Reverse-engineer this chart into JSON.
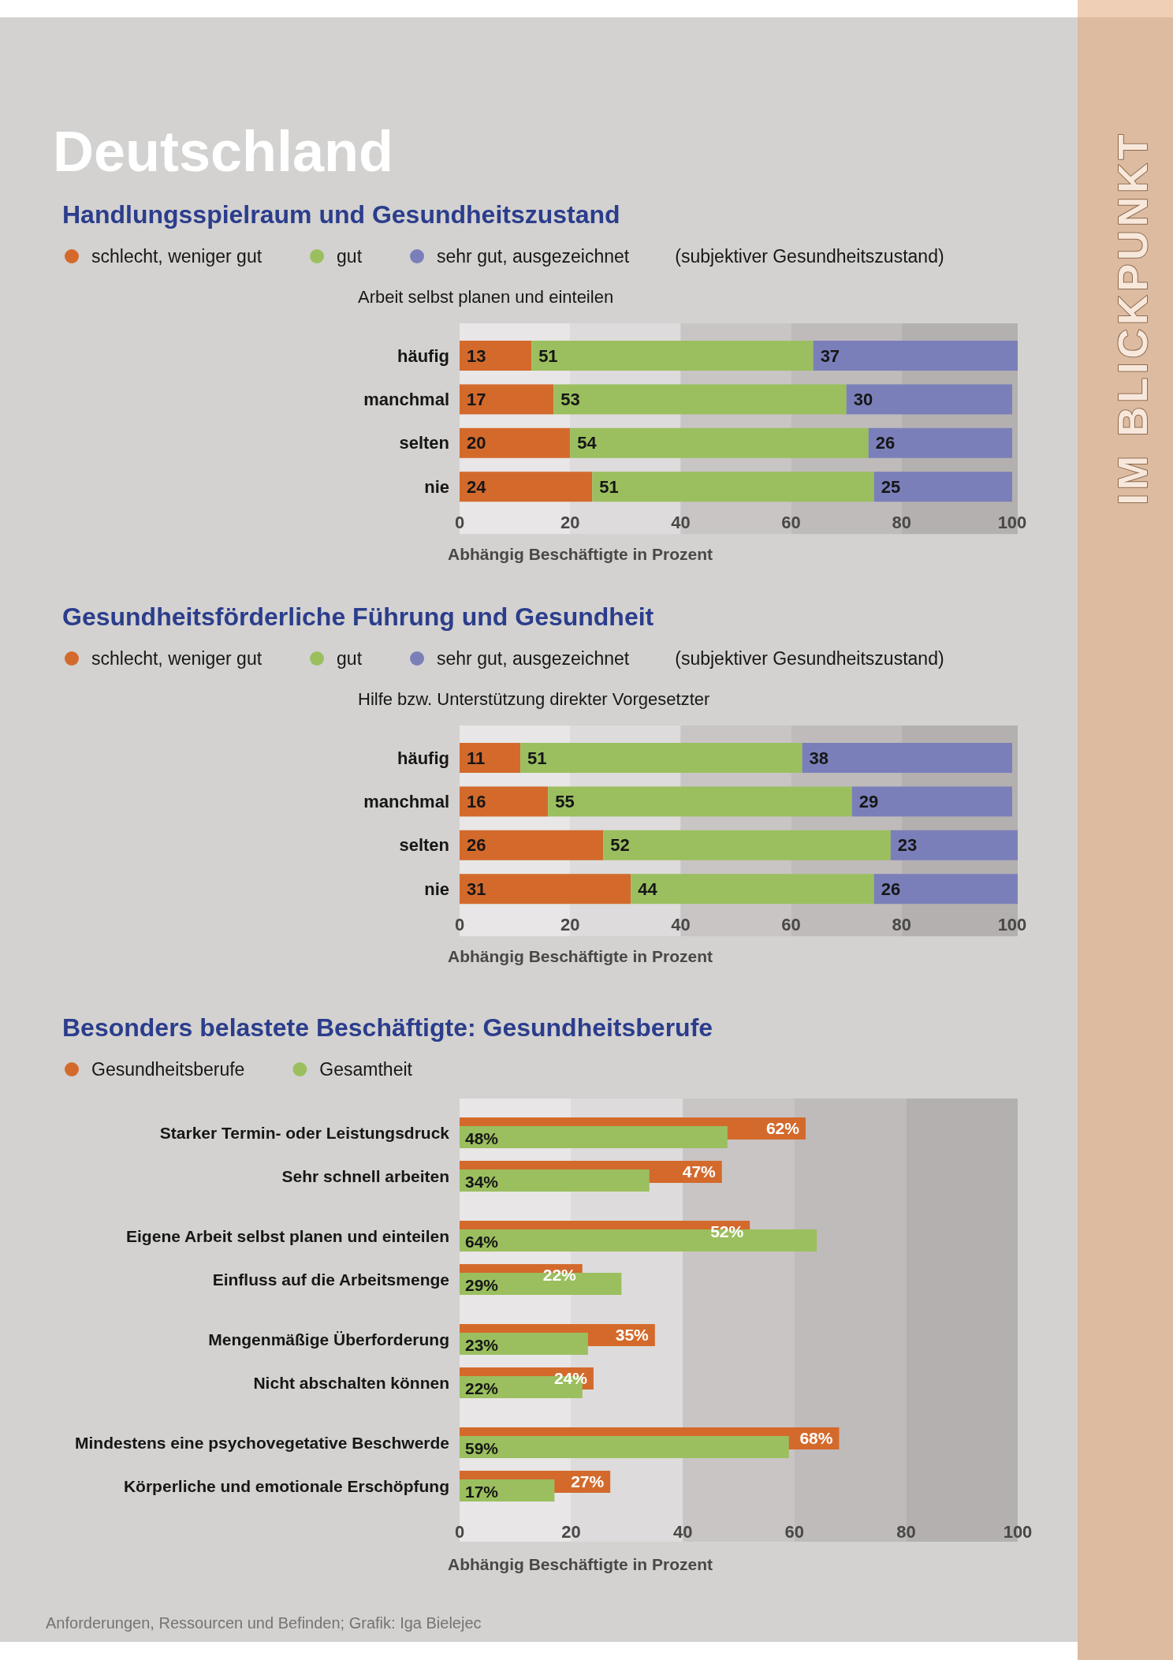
{
  "chart_data": [
    {
      "type": "bar",
      "orientation": "horizontal",
      "stacked": true,
      "title": "Handlungsspielraum und Gesundheitszustand",
      "subtitle": "Arbeit selbst planen und einteilen",
      "xlabel": "Abhängig Beschäftigte in Prozent",
      "legend": "top",
      "legend_title": "(subjektiver Gesundheitszustand)",
      "categories": [
        "häufig",
        "manchmal",
        "selten",
        "nie"
      ],
      "series": [
        {
          "name": "schlecht, weniger gut",
          "color": "#d36a2c",
          "values": [
            13,
            17,
            20,
            24
          ]
        },
        {
          "name": "gut",
          "color": "#9bbf5f",
          "values": [
            51,
            53,
            54,
            51
          ]
        },
        {
          "name": "sehr gut, ausgezeichnet",
          "color": "#7b7fb9",
          "values": [
            37,
            30,
            26,
            25
          ]
        }
      ],
      "xlim": [
        0,
        101
      ],
      "xticks": [
        0,
        20,
        40,
        60,
        80,
        100
      ],
      "bands": [
        {
          "axis": "x",
          "from": 0,
          "to": 20,
          "color": "#e8e6e6"
        },
        {
          "axis": "x",
          "from": 20,
          "to": 40,
          "color": "#dddbdb"
        },
        {
          "axis": "x",
          "from": 40,
          "to": 60,
          "color": "#c9c5c5"
        },
        {
          "axis": "x",
          "from": 60,
          "to": 80,
          "color": "#bfbbbb"
        },
        {
          "axis": "x",
          "from": 80,
          "to": 101,
          "color": "#b4b0b0"
        }
      ],
      "data_labels": true,
      "annotations": [
        "Deutschland",
        "IM BLICKPUNKT"
      ]
    },
    {
      "type": "bar",
      "orientation": "horizontal",
      "stacked": true,
      "title": "Gesundheitsförderliche Führung und Gesundheit",
      "subtitle": "Hilfe bzw. Unterstützung direkter Vorgesetzter",
      "xlabel": "Abhängig Beschäftigte in Prozent",
      "legend": "top",
      "legend_title": "(subjektiver Gesundheitszustand)",
      "categories": [
        "häufig",
        "manchmal",
        "selten",
        "nie"
      ],
      "series": [
        {
          "name": "schlecht, weniger gut",
          "color": "#d36a2c",
          "values": [
            11,
            16,
            26,
            31
          ]
        },
        {
          "name": "gut",
          "color": "#9bbf5f",
          "values": [
            51,
            55,
            52,
            44
          ]
        },
        {
          "name": "sehr gut, ausgezeichnet",
          "color": "#7b7fb9",
          "values": [
            38,
            29,
            23,
            26
          ]
        }
      ],
      "xlim": [
        0,
        101
      ],
      "xticks": [
        0,
        20,
        40,
        60,
        80,
        100
      ],
      "bands": [
        {
          "axis": "x",
          "from": 0,
          "to": 20,
          "color": "#e8e6e6"
        },
        {
          "axis": "x",
          "from": 20,
          "to": 40,
          "color": "#dddbdb"
        },
        {
          "axis": "x",
          "from": 40,
          "to": 60,
          "color": "#c9c5c5"
        },
        {
          "axis": "x",
          "from": 60,
          "to": 80,
          "color": "#bfbbbb"
        },
        {
          "axis": "x",
          "from": 80,
          "to": 101,
          "color": "#b4b0b0"
        }
      ],
      "data_labels": true
    },
    {
      "type": "bar",
      "orientation": "horizontal",
      "title": "Besonders belastete Beschäftigte: Gesundheitsberufe",
      "xlabel": "Abhängig Beschäftigte in Prozent",
      "legend": "top",
      "categories": [
        "Starker Termin- oder Leistungsdruck",
        "Sehr schnell arbeiten",
        "Eigene Arbeit selbst planen und einteilen",
        "Einfluss auf die Arbeitsmenge",
        "Mengenmäßige Überforderung",
        "Nicht abschalten können",
        "Mindestens eine psychovegetative Beschwerde",
        "Körperliche und emotionale Erschöpfung"
      ],
      "series": [
        {
          "name": "Gesundheitsberufe",
          "color": "#d36a2c",
          "values": [
            62,
            47,
            52,
            22,
            35,
            24,
            68,
            27
          ],
          "value_labels": [
            "62%",
            "47%",
            "52%",
            "22%",
            "35%",
            "24%",
            "68%",
            "27%"
          ]
        },
        {
          "name": "Gesamtheit",
          "color": "#9bbf5f",
          "values": [
            48,
            34,
            64,
            29,
            23,
            22,
            59,
            17
          ],
          "value_labels": [
            "48%",
            "34%",
            "64%",
            "29%",
            "23%",
            "22%",
            "59%",
            "17%"
          ]
        }
      ],
      "xlim": [
        0,
        100
      ],
      "xticks": [
        0,
        20,
        40,
        60,
        80,
        100
      ],
      "bands": [
        {
          "axis": "x",
          "from": 0,
          "to": 20,
          "color": "#e8e6e6"
        },
        {
          "axis": "x",
          "from": 20,
          "to": 40,
          "color": "#dddbdb"
        },
        {
          "axis": "x",
          "from": 40,
          "to": 60,
          "color": "#c9c5c5"
        },
        {
          "axis": "x",
          "from": 60,
          "to": 80,
          "color": "#bfbbbb"
        },
        {
          "axis": "x",
          "from": 80,
          "to": 100,
          "color": "#b4b0b0"
        }
      ],
      "annotations": [
        "Anforderungen, Ressourcen und Befinden;  Grafik: Iga Bielejec"
      ]
    }
  ]
}
